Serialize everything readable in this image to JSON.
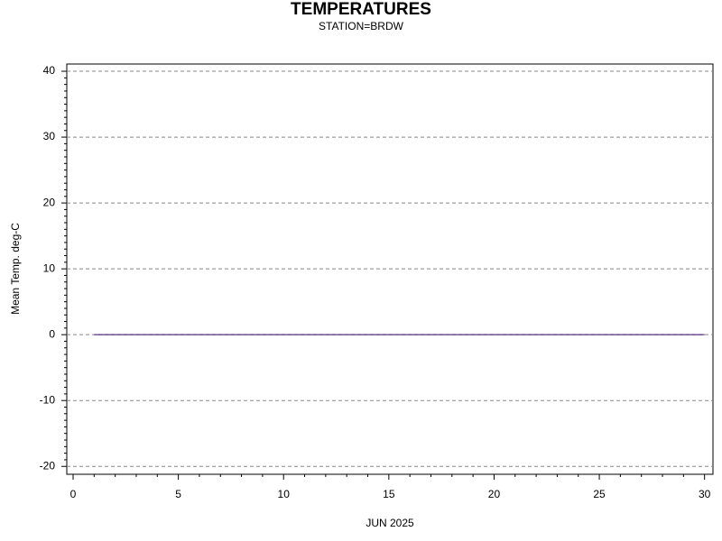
{
  "chart_data": {
    "type": "line",
    "title": "TEMPERATURES",
    "subtitle": "STATION=BRDW",
    "x_label": "JUN 2025",
    "y_label": "Mean Temp. deg-C",
    "x": [
      1,
      2,
      3,
      4,
      5,
      6,
      7,
      8,
      9,
      10,
      11,
      12,
      13,
      14,
      15,
      16,
      17,
      18,
      19,
      20,
      21,
      22,
      23,
      24,
      25,
      26,
      27,
      28,
      29,
      30
    ],
    "series": [
      {
        "name": "Mean Temp",
        "color": "#330066",
        "values": [
          0,
          0,
          0,
          0,
          0,
          0,
          0,
          0,
          0,
          0,
          0,
          0,
          0,
          0,
          0,
          0,
          0,
          0,
          0,
          0,
          0,
          0,
          0,
          0,
          0,
          0,
          0,
          0,
          0,
          0
        ]
      }
    ],
    "xlim": [
      -0.3,
      30.4
    ],
    "xticks": [
      0,
      5,
      10,
      15,
      20,
      25,
      30
    ],
    "ylim": [
      -21.2,
      41.1
    ],
    "yticks": [
      -20,
      -10,
      0,
      10,
      20,
      30,
      40
    ],
    "grid": true
  }
}
